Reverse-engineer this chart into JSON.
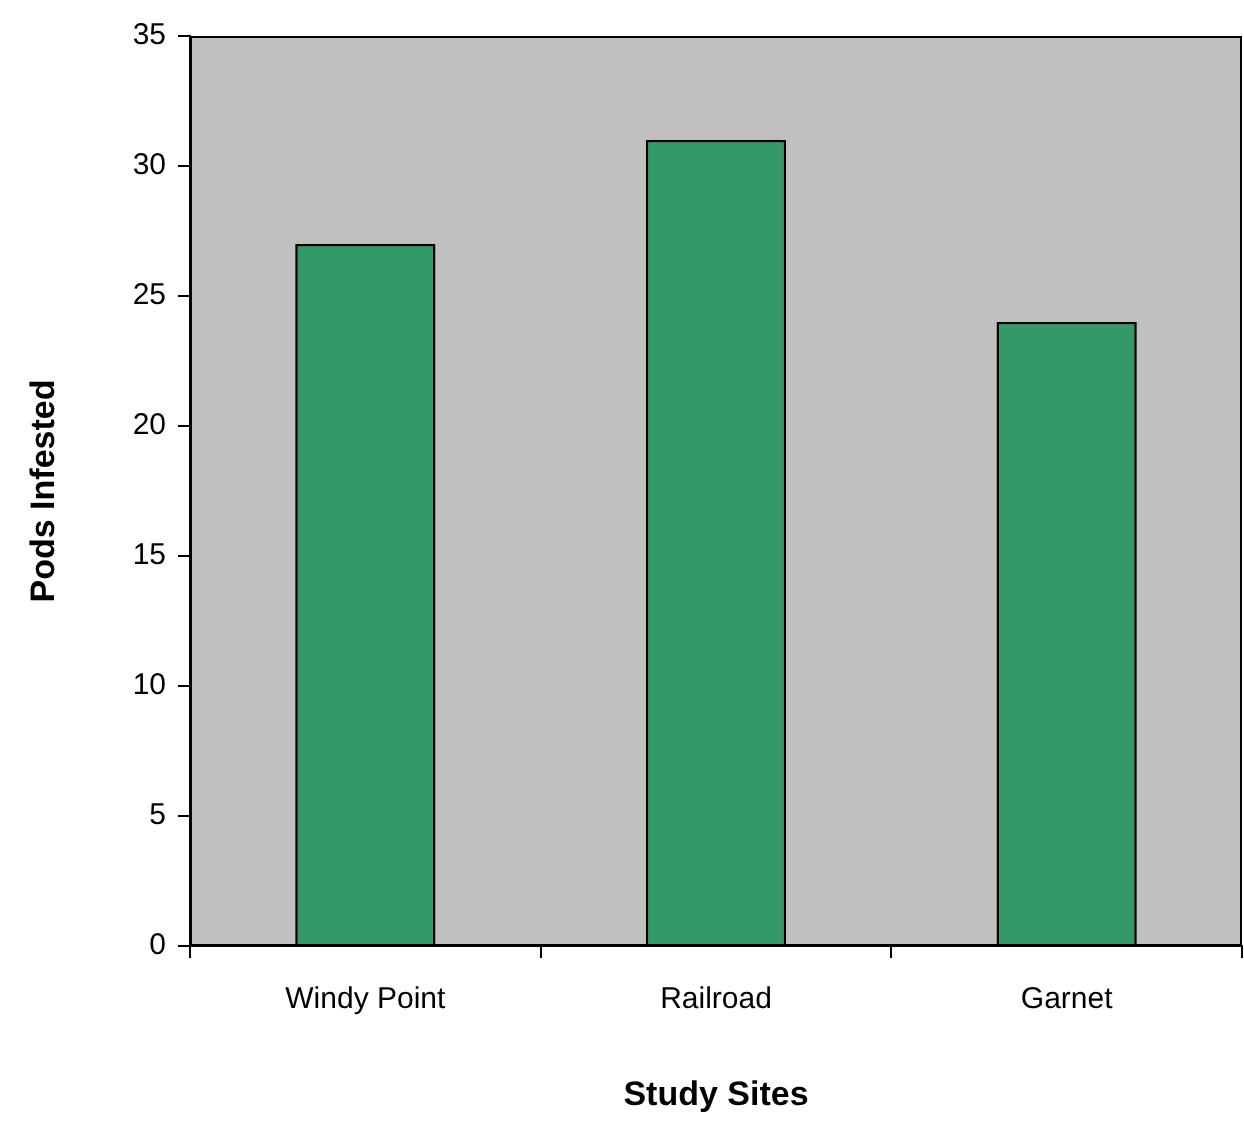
{
  "chart_data": {
    "type": "bar",
    "xlabel": "Study Sites",
    "ylabel": "Pods Infested",
    "categories": [
      "Windy Point",
      "Railroad",
      "Garnet"
    ],
    "values": [
      27,
      31,
      24
    ],
    "color": "#339966",
    "ylim": [
      0,
      35
    ],
    "yticks": [
      0,
      5,
      10,
      15,
      20,
      25,
      30,
      35
    ],
    "grid": false,
    "legend": false
  }
}
